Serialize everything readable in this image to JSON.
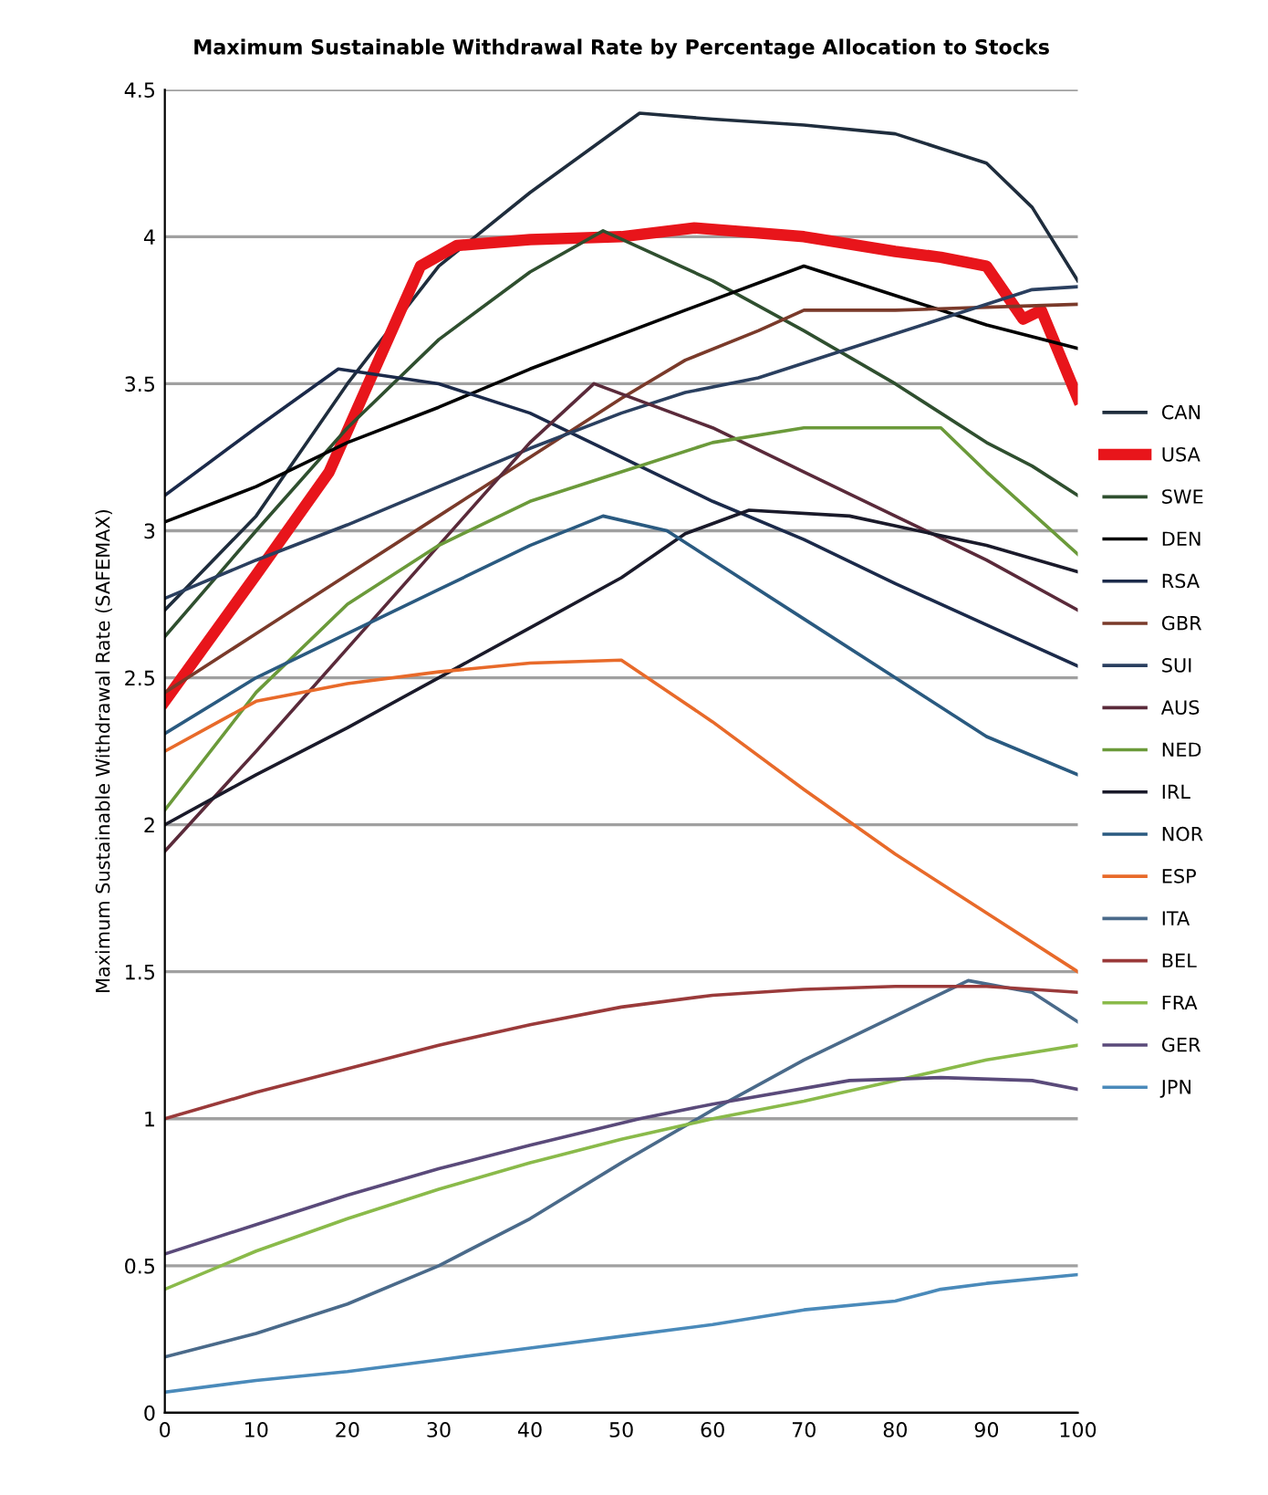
{
  "chart_data": {
    "type": "line",
    "title": "Maximum Sustainable Withdrawal Rate by Percentage Allocation to Stocks",
    "ylabel": "Maximum Sustainable Withdrawal Rate (SAFEMAX)",
    "xlim": [
      0,
      100
    ],
    "xticks": [
      0,
      10,
      20,
      30,
      40,
      50,
      60,
      70,
      80,
      90,
      100
    ],
    "ylim": [
      0,
      4.5
    ],
    "yticks": [
      0,
      0.5,
      1,
      1.5,
      2,
      2.5,
      3,
      3.5,
      4,
      4.5
    ],
    "grid": "y",
    "legend": "right",
    "line_style": "solid",
    "marker": "none",
    "series": [
      {
        "name": "CAN",
        "color": "#1f2d3d",
        "x": [
          0,
          10,
          20,
          30,
          40,
          52,
          60,
          70,
          80,
          85,
          90,
          95,
          100
        ],
        "values": [
          2.73,
          3.05,
          3.5,
          3.9,
          4.15,
          4.42,
          4.4,
          4.38,
          4.35,
          4.3,
          4.25,
          4.1,
          3.85
        ]
      },
      {
        "name": "USA",
        "color": "#e8151b",
        "x": [
          0,
          10,
          18,
          28,
          32,
          40,
          50,
          58,
          70,
          80,
          85,
          90,
          94,
          96,
          100
        ],
        "values": [
          2.42,
          2.85,
          3.2,
          3.9,
          3.97,
          3.99,
          4.0,
          4.03,
          4.0,
          3.95,
          3.93,
          3.9,
          3.72,
          3.75,
          3.45
        ]
      },
      {
        "name": "SWE",
        "color": "#2f4f2f",
        "x": [
          0,
          10,
          20,
          30,
          40,
          48,
          60,
          70,
          80,
          90,
          95,
          100
        ],
        "values": [
          2.64,
          3.0,
          3.35,
          3.65,
          3.88,
          4.02,
          3.85,
          3.68,
          3.5,
          3.3,
          3.22,
          3.12
        ]
      },
      {
        "name": "DEN",
        "color": "#000000",
        "x": [
          0,
          10,
          20,
          30,
          40,
          57,
          70,
          80,
          90,
          100
        ],
        "values": [
          3.03,
          3.15,
          3.3,
          3.42,
          3.55,
          3.75,
          3.9,
          3.8,
          3.7,
          3.62
        ]
      },
      {
        "name": "RSA",
        "color": "#1b2a4a",
        "x": [
          0,
          10,
          19,
          30,
          40,
          50,
          60,
          70,
          80,
          90,
          100
        ],
        "values": [
          3.12,
          3.35,
          3.55,
          3.5,
          3.4,
          3.25,
          3.1,
          2.97,
          2.82,
          2.68,
          2.54
        ]
      },
      {
        "name": "GBR",
        "color": "#7a3a2a",
        "x": [
          0,
          10,
          20,
          30,
          40,
          50,
          57,
          65,
          70,
          80,
          90,
          100
        ],
        "values": [
          2.45,
          2.65,
          2.85,
          3.05,
          3.25,
          3.45,
          3.58,
          3.68,
          3.75,
          3.75,
          3.76,
          3.77
        ]
      },
      {
        "name": "SUI",
        "color": "#2a3f5f",
        "x": [
          0,
          10,
          20,
          30,
          40,
          50,
          57,
          65,
          75,
          85,
          95,
          100
        ],
        "values": [
          2.77,
          2.9,
          3.02,
          3.15,
          3.28,
          3.4,
          3.47,
          3.52,
          3.62,
          3.72,
          3.82,
          3.83
        ]
      },
      {
        "name": "AUS",
        "color": "#5a2a3a",
        "x": [
          0,
          10,
          20,
          30,
          40,
          47,
          60,
          70,
          80,
          90,
          100
        ],
        "values": [
          1.91,
          2.25,
          2.6,
          2.95,
          3.3,
          3.5,
          3.35,
          3.2,
          3.05,
          2.9,
          2.73
        ]
      },
      {
        "name": "NED",
        "color": "#6b9a3a",
        "x": [
          0,
          10,
          20,
          30,
          40,
          50,
          60,
          70,
          85,
          90,
          100
        ],
        "values": [
          2.05,
          2.45,
          2.75,
          2.95,
          3.1,
          3.2,
          3.3,
          3.35,
          3.35,
          3.2,
          2.92
        ]
      },
      {
        "name": "IRL",
        "color": "#1a1a2a",
        "x": [
          0,
          10,
          20,
          30,
          40,
          50,
          57,
          64,
          75,
          90,
          100
        ],
        "values": [
          2.0,
          2.17,
          2.33,
          2.5,
          2.67,
          2.84,
          2.99,
          3.07,
          3.05,
          2.95,
          2.86
        ]
      },
      {
        "name": "NOR",
        "color": "#2a5a80",
        "x": [
          0,
          10,
          20,
          30,
          40,
          48,
          55,
          60,
          70,
          80,
          90,
          100
        ],
        "values": [
          2.31,
          2.5,
          2.65,
          2.8,
          2.95,
          3.05,
          3.0,
          2.9,
          2.7,
          2.5,
          2.3,
          2.17
        ]
      },
      {
        "name": "ESP",
        "color": "#e86a2a",
        "x": [
          0,
          10,
          20,
          30,
          40,
          50,
          60,
          70,
          80,
          90,
          100
        ],
        "values": [
          2.25,
          2.42,
          2.48,
          2.52,
          2.55,
          2.56,
          2.35,
          2.12,
          1.9,
          1.7,
          1.5
        ]
      },
      {
        "name": "ITA",
        "color": "#4a6a8a",
        "x": [
          0,
          10,
          20,
          30,
          40,
          50,
          60,
          70,
          80,
          88,
          95,
          100
        ],
        "values": [
          0.19,
          0.27,
          0.37,
          0.5,
          0.66,
          0.85,
          1.03,
          1.2,
          1.35,
          1.47,
          1.43,
          1.33
        ]
      },
      {
        "name": "BEL",
        "color": "#9a3a3a",
        "x": [
          0,
          10,
          20,
          30,
          40,
          50,
          60,
          70,
          80,
          90,
          100
        ],
        "values": [
          1.0,
          1.09,
          1.17,
          1.25,
          1.32,
          1.38,
          1.42,
          1.44,
          1.45,
          1.45,
          1.43
        ]
      },
      {
        "name": "FRA",
        "color": "#8aba4a",
        "x": [
          0,
          10,
          20,
          30,
          40,
          50,
          60,
          70,
          80,
          90,
          100
        ],
        "values": [
          0.42,
          0.55,
          0.66,
          0.76,
          0.85,
          0.93,
          1.0,
          1.06,
          1.13,
          1.2,
          1.25
        ]
      },
      {
        "name": "GER",
        "color": "#5a4a7a",
        "x": [
          0,
          10,
          20,
          30,
          40,
          52,
          60,
          75,
          85,
          95,
          100
        ],
        "values": [
          0.54,
          0.64,
          0.74,
          0.83,
          0.91,
          1.0,
          1.05,
          1.13,
          1.14,
          1.13,
          1.1
        ]
      },
      {
        "name": "JPN",
        "color": "#4a8aba",
        "x": [
          0,
          10,
          20,
          30,
          40,
          50,
          60,
          70,
          80,
          85,
          90,
          100
        ],
        "values": [
          0.07,
          0.11,
          0.14,
          0.18,
          0.22,
          0.26,
          0.3,
          0.35,
          0.38,
          0.42,
          0.44,
          0.47
        ]
      }
    ]
  }
}
